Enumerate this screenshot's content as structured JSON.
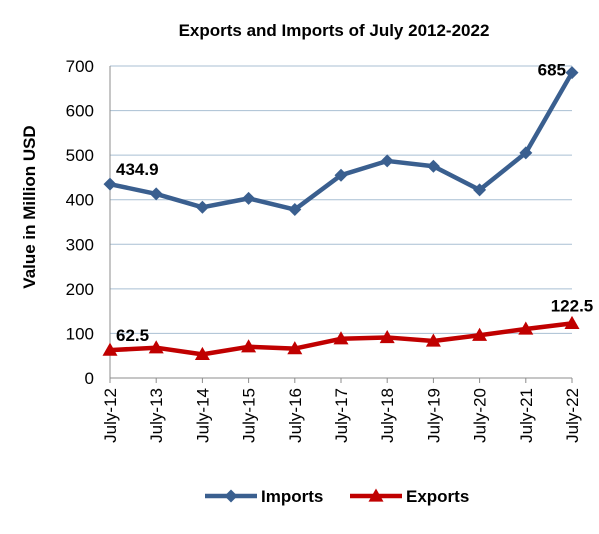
{
  "chart_data": {
    "type": "line",
    "title": "Exports and Imports of July 2012-2022",
    "xlabel": "",
    "ylabel": "Value in  Million  USD",
    "categories": [
      "July-12",
      "July-13",
      "July-14",
      "July-15",
      "July-16",
      "July-17",
      "July-18",
      "July-19",
      "July-20",
      "July-21",
      "July-22"
    ],
    "ylim": [
      0,
      700
    ],
    "yticks": [
      0,
      100,
      200,
      300,
      400,
      500,
      600,
      700
    ],
    "grid": true,
    "legend_position": "bottom",
    "series": [
      {
        "name": "Imports",
        "color": "#3A5F8F",
        "marker": "diamond",
        "values": [
          434.9,
          413,
          383,
          403,
          378,
          455,
          487,
          475,
          422,
          505,
          685
        ],
        "labels": [
          {
            "index": 0,
            "text": "434.9"
          },
          {
            "index": 10,
            "text": "685"
          }
        ]
      },
      {
        "name": "Exports",
        "color": "#C00000",
        "marker": "triangle",
        "values": [
          62.5,
          68,
          53,
          70,
          66,
          88,
          91,
          83,
          96,
          110,
          122.5
        ],
        "labels": [
          {
            "index": 0,
            "text": "62.5"
          },
          {
            "index": 10,
            "text": "122.5"
          }
        ]
      }
    ]
  }
}
